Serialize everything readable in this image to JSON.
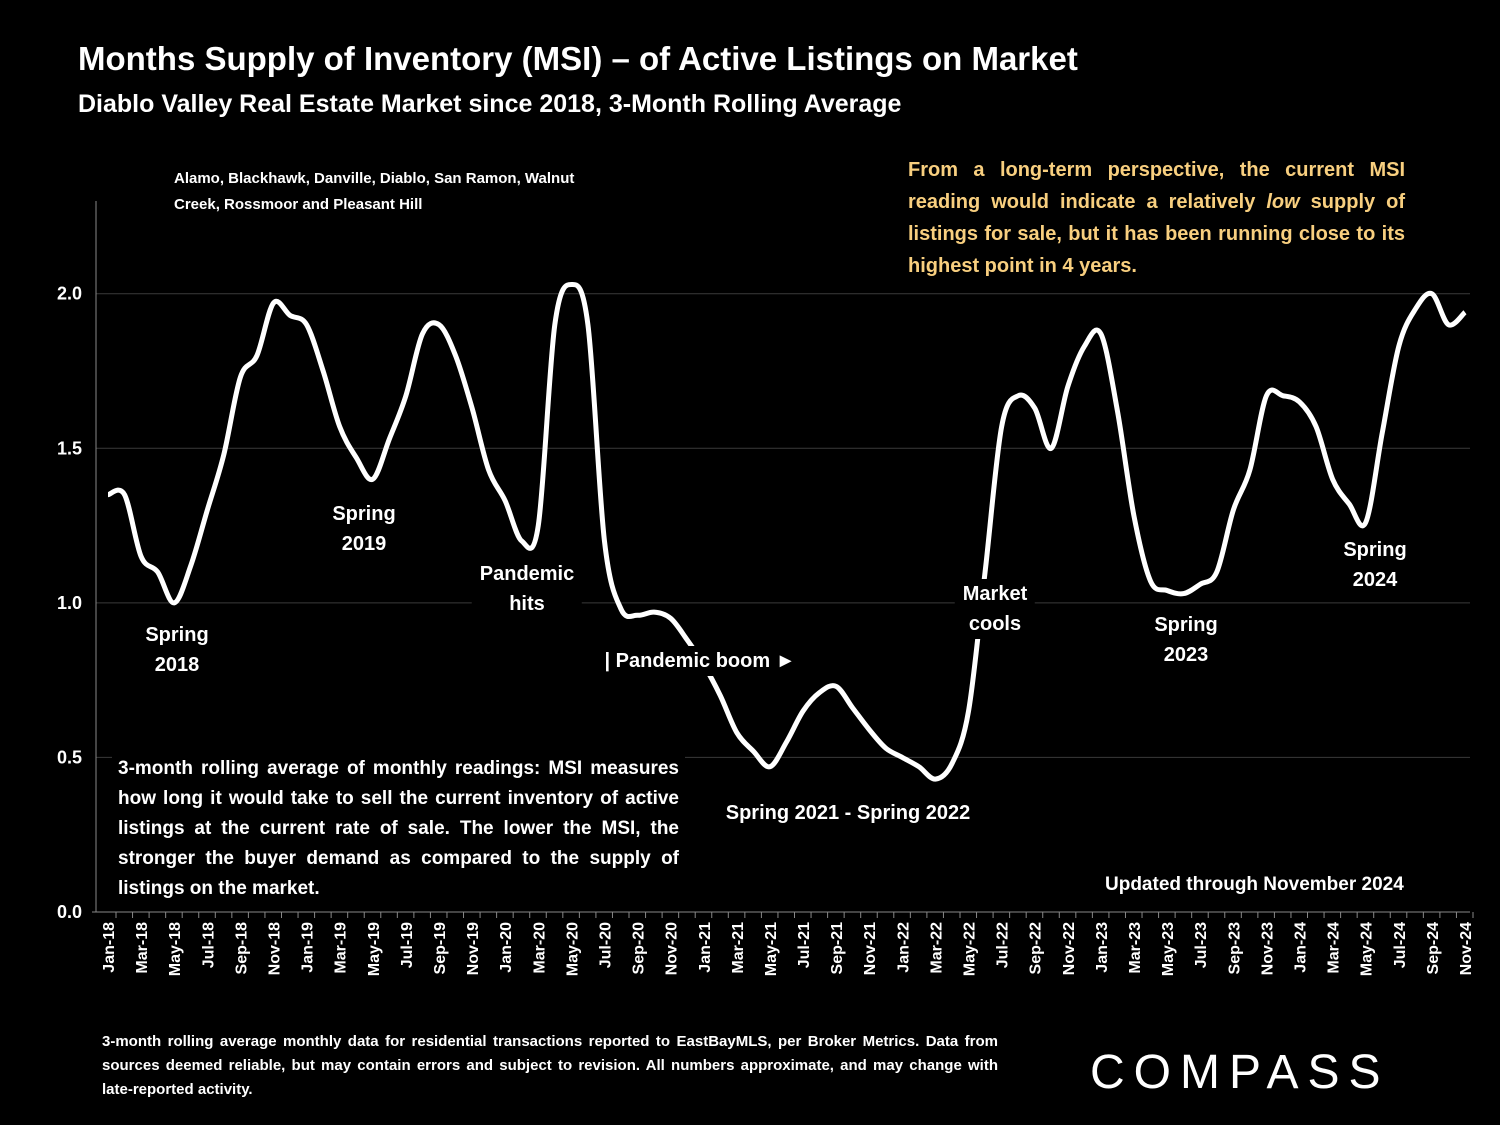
{
  "chart_data": {
    "type": "line",
    "title": "Months Supply of Inventory (MSI) – of Active Listings on Market",
    "subtitle": "Diablo Valley Real Estate Market since 2018, 3-Month Rolling Average",
    "region_note": "Alamo, Blackhawk, Danville, Diablo, San Ramon, Walnut Creek, Rossmoor and Pleasant Hill",
    "insight": [
      "From a long-term perspective, the current MSI reading would indicate a relatively ",
      "low",
      " supply of listings for sale, but it has been running close to its highest point in 4 years."
    ],
    "explanation": "3-month rolling average of monthly readings: MSI measures how long it would take to sell the current inventory of active listings at the current rate of sale. The lower the MSI, the stronger the buyer demand as compared to the supply of listings on the market.",
    "updated": "Updated through November 2024",
    "footnote": "3-month rolling average monthly data for residential transactions reported to EastBayMLS, per Broker Metrics. Data from sources deemed reliable, but may contain errors and subject to revision. All numbers approximate, and may change with late-reported activity.",
    "brand": "COMPASS",
    "annotations": [
      {
        "lines": [
          "Spring",
          "2018"
        ]
      },
      {
        "lines": [
          "Spring",
          "2019"
        ]
      },
      {
        "lines": [
          "Pandemic",
          "hits"
        ]
      },
      {
        "lines": [
          "| Pandemic boom ►"
        ]
      },
      {
        "lines": [
          "Spring 2021 - Spring 2022"
        ]
      },
      {
        "lines": [
          "Market",
          "cools"
        ]
      },
      {
        "lines": [
          "Spring",
          "2023"
        ]
      },
      {
        "lines": [
          "Spring",
          "2024"
        ]
      }
    ],
    "categories": [
      "Jan-18",
      null,
      "Mar-18",
      null,
      "May-18",
      null,
      "Jul-18",
      null,
      "Sep-18",
      null,
      "Nov-18",
      null,
      "Jan-19",
      null,
      "Mar-19",
      null,
      "May-19",
      null,
      "Jul-19",
      null,
      "Sep-19",
      null,
      "Nov-19",
      null,
      "Jan-20",
      null,
      "Mar-20",
      null,
      "May-20",
      null,
      "Jul-20",
      null,
      "Sep-20",
      null,
      "Nov-20",
      null,
      "Jan-21",
      null,
      "Mar-21",
      null,
      "May-21",
      null,
      "Jul-21",
      null,
      "Sep-21",
      null,
      "Nov-21",
      null,
      "Jan-22",
      null,
      "Mar-22",
      null,
      "May-22",
      null,
      "Jul-22",
      null,
      "Sep-22",
      null,
      "Nov-22",
      null,
      "Jan-23",
      null,
      "Mar-23",
      null,
      "May-23",
      null,
      "Jul-23",
      null,
      "Sep-23",
      null,
      "Nov-23",
      null,
      "Jan-24",
      null,
      "Mar-24",
      null,
      "May-24",
      null,
      "Jul-24",
      null,
      "Sep-24",
      null,
      "Nov-24"
    ],
    "series": [
      {
        "name": "MSI",
        "color": "#ffffff",
        "values": [
          1.35,
          1.35,
          1.15,
          1.1,
          1.0,
          1.12,
          1.3,
          1.48,
          1.73,
          1.8,
          1.97,
          1.93,
          1.9,
          1.75,
          1.57,
          1.47,
          1.4,
          1.53,
          1.67,
          1.87,
          1.9,
          1.8,
          1.63,
          1.43,
          1.33,
          1.2,
          1.25,
          1.9,
          2.03,
          1.9,
          1.2,
          0.98,
          0.96,
          0.97,
          0.95,
          0.88,
          0.8,
          0.7,
          0.58,
          0.52,
          0.47,
          0.55,
          0.65,
          0.71,
          0.73,
          0.66,
          0.59,
          0.53,
          0.5,
          0.47,
          0.43,
          0.48,
          0.65,
          1.1,
          1.57,
          1.67,
          1.63,
          1.5,
          1.7,
          1.83,
          1.87,
          1.62,
          1.28,
          1.07,
          1.04,
          1.03,
          1.06,
          1.1,
          1.3,
          1.43,
          1.67,
          1.67,
          1.65,
          1.57,
          1.4,
          1.32,
          1.26,
          1.55,
          1.83,
          1.95,
          2.0,
          1.9,
          1.94
        ]
      }
    ],
    "ylim": [
      0,
      2.3
    ],
    "yticks": [
      {
        "value": 0,
        "label": "0.0"
      },
      0.5,
      {
        "value": 1,
        "label": "1.0"
      },
      1.5,
      {
        "value": 2,
        "label": "2.0"
      }
    ],
    "grid": true
  }
}
